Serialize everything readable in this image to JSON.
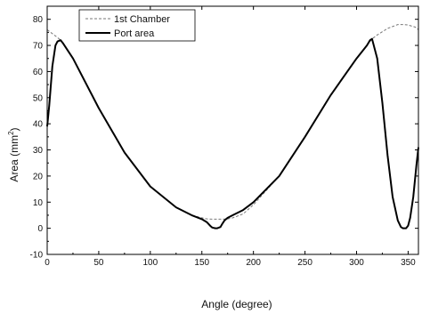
{
  "chart_data": {
    "type": "line",
    "title": "",
    "xlabel": "Angle (degree)",
    "ylabel_main": "Area (mm",
    "ylabel_sup": "2",
    "ylabel_close": ")",
    "xlim": [
      0,
      360
    ],
    "ylim": [
      -10,
      85
    ],
    "xticks": [
      0,
      50,
      100,
      150,
      200,
      250,
      300,
      350
    ],
    "yticks": [
      -10,
      0,
      10,
      20,
      30,
      40,
      50,
      60,
      70,
      80
    ],
    "grid": false,
    "legend_position": "top-left",
    "series": [
      {
        "name": "1st Chamber",
        "style": "dashed",
        "color": "#777777",
        "x": [
          0,
          10,
          13,
          25,
          50,
          75,
          100,
          125,
          140,
          150,
          155,
          160,
          165,
          170,
          175,
          180,
          190,
          200,
          225,
          250,
          275,
          300,
          310,
          315,
          320,
          330,
          340,
          345,
          350,
          357,
          360
        ],
        "y": [
          76,
          73,
          72,
          65,
          46,
          29,
          16,
          8,
          5,
          4,
          3.6,
          3.5,
          3.5,
          3.5,
          3.6,
          4,
          5.5,
          9,
          20,
          35,
          51,
          65,
          70,
          72.5,
          74,
          76.5,
          78,
          78,
          77.8,
          77,
          76
        ]
      },
      {
        "name": "Port area",
        "style": "solid",
        "color": "#000000",
        "x": [
          0,
          2,
          5,
          8,
          10,
          13,
          15,
          25,
          50,
          75,
          100,
          125,
          140,
          150,
          155,
          158,
          160,
          163,
          165,
          168,
          170,
          172,
          175,
          180,
          190,
          200,
          225,
          250,
          275,
          300,
          310,
          313,
          315,
          320,
          325,
          330,
          335,
          340,
          343,
          345,
          348,
          350,
          352,
          355,
          358,
          360
        ],
        "y": [
          39,
          47,
          62,
          70,
          71.5,
          72,
          71,
          65,
          46,
          29,
          16,
          8,
          5,
          3.5,
          2.3,
          1,
          0.3,
          0,
          0,
          0.5,
          1.8,
          3,
          4,
          5,
          7,
          10,
          20,
          35,
          51,
          65,
          70,
          72,
          72.5,
          65,
          48,
          28,
          12,
          3,
          0.5,
          0,
          0,
          1,
          4,
          12,
          24,
          31
        ]
      }
    ]
  }
}
